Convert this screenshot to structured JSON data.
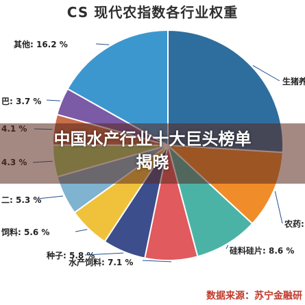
{
  "chart_data": {
    "type": "pie",
    "title": "CS 现代农指数各行业权重",
    "slices": [
      {
        "label": "生猪养",
        "display": "生猪养",
        "value": 25.0,
        "color": "#2e6e9e"
      },
      {
        "label": "农药",
        "display": "农药:",
        "value": 10.5,
        "color": "#f08c2a"
      },
      {
        "label": "硅料硅片",
        "display": "硅料硅片: 8.6 %",
        "value": 8.6,
        "color": "#4bb3a6"
      },
      {
        "label": "水产饲料",
        "display": "水产饲料: 7.1 %",
        "value": 7.1,
        "color": "#e05a5e"
      },
      {
        "label": "种子",
        "display": "种子: 5.8 %",
        "value": 5.8,
        "color": "#3c4e8c"
      },
      {
        "label": "饲料",
        "display": "饲料: 5.6 %",
        "value": 5.6,
        "color": "#f0c23c"
      },
      {
        "label": "",
        "display": "二: 5.3 %",
        "value": 5.3,
        "color": "#7fb3cf"
      },
      {
        "label": "",
        "display": "4.3 %",
        "value": 4.3,
        "color": "#a7cf6e"
      },
      {
        "label": "",
        "display": "4.1 %",
        "value": 4.1,
        "color": "#c76e4a"
      },
      {
        "label": "",
        "display": "巴: 3.7 %",
        "value": 3.7,
        "color": "#7b5aa6"
      },
      {
        "label": "其他",
        "display": "其他: 16.2 %",
        "value": 16.2,
        "color": "#3d97cf"
      }
    ]
  },
  "overlay": {
    "line1": "中国水产行业十大巨头榜单",
    "line2": "揭晓"
  },
  "source": "数据来源：苏宁金融研"
}
